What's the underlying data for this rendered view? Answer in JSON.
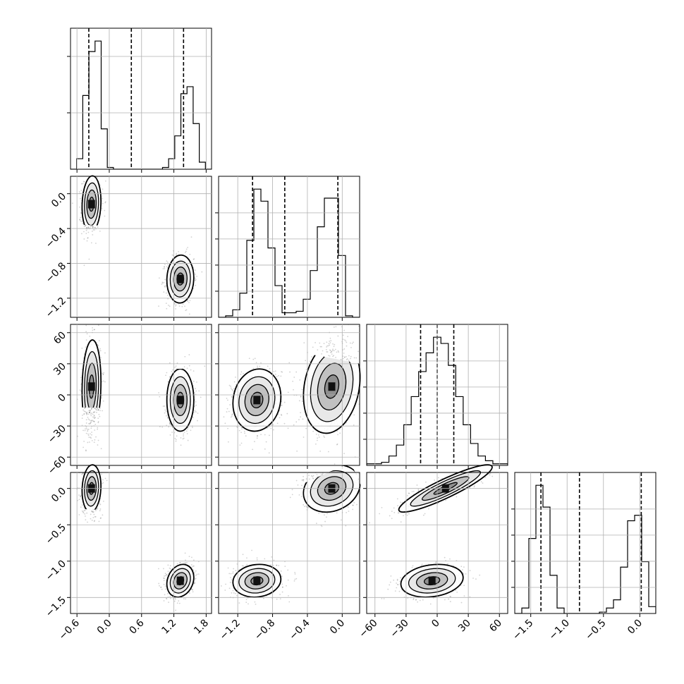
{
  "chart_data": {
    "type": "corner",
    "parameters": [
      {
        "ticks": [
          -0.6,
          0.0,
          0.6,
          1.2,
          1.8
        ],
        "tick_labels": [
          "−0.6",
          "0.0",
          "0.6",
          "1.2",
          "1.8"
        ],
        "range": [
          -0.72,
          1.9
        ]
      },
      {
        "ticks": [
          -1.2,
          -0.8,
          -0.4,
          0.0
        ],
        "tick_labels": [
          "−1.2",
          "−0.8",
          "−0.4",
          "0.0"
        ],
        "range": [
          -1.42,
          0.2
        ]
      },
      {
        "ticks": [
          -60,
          -30,
          0,
          30,
          60
        ],
        "tick_labels": [
          "−60",
          "−30",
          "0",
          "30",
          "60"
        ],
        "range": [
          -68,
          68
        ]
      },
      {
        "ticks": [
          -1.5,
          -1.0,
          -0.5,
          0.0
        ],
        "tick_labels": [
          "−1.5",
          "−1.0",
          "−0.5",
          "0.0"
        ],
        "range": [
          -1.72,
          0.22
        ]
      }
    ],
    "quantiles": [
      [
        -0.38,
        0.41,
        1.38
      ],
      [
        -1.03,
        -0.66,
        -0.05
      ],
      [
        -16,
        0,
        16
      ],
      [
        -1.36,
        -0.83,
        0.02
      ]
    ],
    "histograms": [
      {
        "counts": [
          0,
          0.06,
          0.42,
          0.67,
          0.73,
          0.23,
          0.01,
          0,
          0,
          0,
          0,
          0,
          0,
          0,
          0,
          0.01,
          0.06,
          0.19,
          0.43,
          0.47,
          0.26,
          0.04,
          0
        ]
      },
      {
        "counts": [
          0,
          0.01,
          0.05,
          0.16,
          0.51,
          0.85,
          0.77,
          0.46,
          0.21,
          0.03,
          0.03,
          0.04,
          0.12,
          0.31,
          0.6,
          0.79,
          0.79,
          0.41,
          0.01,
          0
        ]
      },
      {
        "counts": [
          0.01,
          0.01,
          0.02,
          0.06,
          0.13,
          0.26,
          0.44,
          0.6,
          0.72,
          0.82,
          0.78,
          0.64,
          0.44,
          0.26,
          0.14,
          0.06,
          0.03,
          0.01,
          0.01
        ]
      },
      {
        "counts": [
          0,
          0.04,
          0.55,
          0.94,
          0.78,
          0.28,
          0.04,
          0,
          0,
          0,
          0,
          0,
          0.01,
          0.04,
          0.1,
          0.34,
          0.68,
          0.72,
          0.38,
          0.05
        ]
      }
    ],
    "clusters": [
      {
        "mean": [
          -0.33,
          -0.12,
          8,
          0.0
        ],
        "sd": [
          0.07,
          0.13,
          18,
          0.13
        ],
        "corr": {
          "0-1": 0.1,
          "0-2": 0.1,
          "0-3": 0.1,
          "1-2": 0.2,
          "1-3": 0.2,
          "2-3": 0.9
        }
      },
      {
        "mean": [
          1.32,
          -0.98,
          -5,
          -1.27
        ],
        "sd": [
          0.1,
          0.11,
          12,
          0.09
        ],
        "corr": {
          "0-1": 0.05,
          "0-2": 0.0,
          "0-3": 0.2,
          "1-2": 0.1,
          "1-3": 0.1,
          "2-3": 0.2
        }
      }
    ],
    "grid": true
  }
}
